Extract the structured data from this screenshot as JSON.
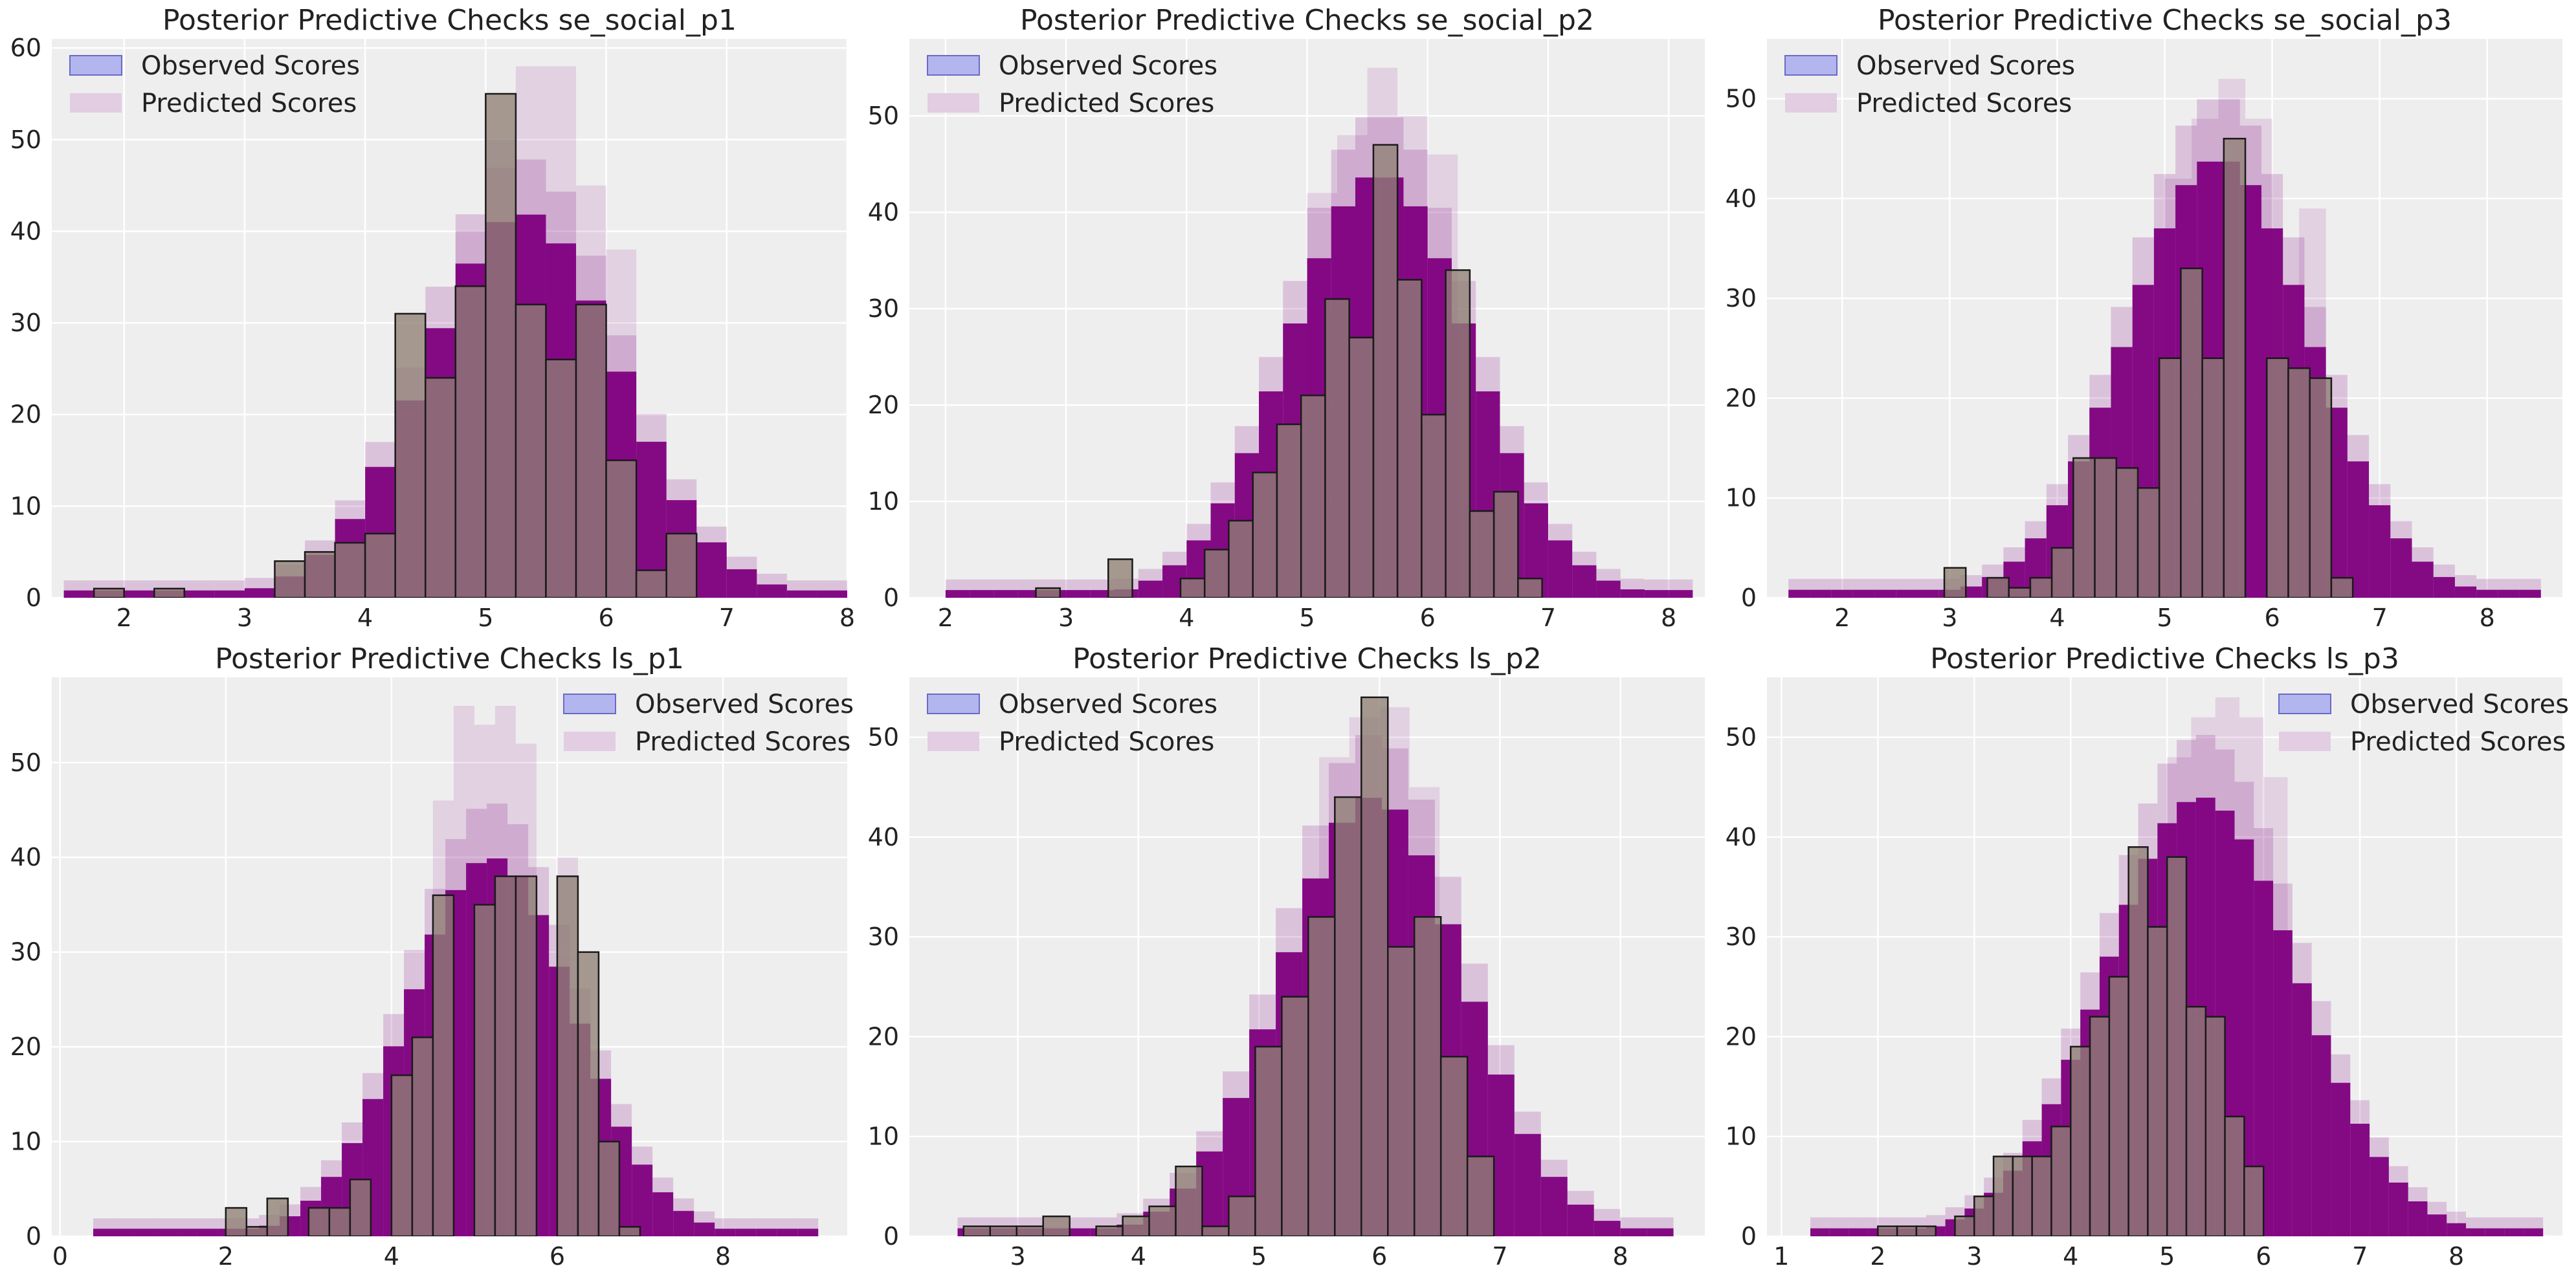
{
  "figure": {
    "colors": {
      "panel_bg": "#eeeeee",
      "grid": "#ffffff",
      "predicted": "#800080",
      "observed_fill": "#8f8074",
      "observed_edge": "#1a1a1a",
      "legend_observed": "#b3b5ee",
      "legend_predicted": "#e2cde2"
    }
  },
  "chart_data": [
    {
      "type": "bar",
      "title": "Posterior Predictive Checks se_social_p1",
      "legend": [
        "Observed Scores",
        "Predicted Scores"
      ],
      "legend_position": "top-left",
      "xlim": [
        1.4,
        8.0
      ],
      "ylim": [
        0,
        61
      ],
      "xticks": [
        2,
        3,
        4,
        5,
        6,
        7,
        8
      ],
      "yticks": [
        0,
        10,
        20,
        30,
        40,
        50,
        60
      ],
      "observed": {
        "bin_start": 1.75,
        "bin_width": 0.25,
        "counts": [
          1,
          0,
          1,
          0,
          0,
          0,
          4,
          5,
          6,
          7,
          31,
          24,
          34,
          55,
          32,
          26,
          32,
          15,
          3,
          7
        ]
      },
      "predicted": {
        "mean": 5.3,
        "sd": 0.8,
        "peak": 42,
        "x_range": [
          1.5,
          7.8
        ],
        "max_envelope": [
          [
            4.75,
            40
          ],
          [
            5.0,
            50
          ],
          [
            5.25,
            58
          ],
          [
            5.5,
            58
          ],
          [
            5.75,
            45
          ],
          [
            6.0,
            38
          ]
        ]
      }
    },
    {
      "type": "bar",
      "title": "Posterior Predictive Checks se_social_p2",
      "legend": [
        "Observed Scores",
        "Predicted Scores"
      ],
      "legend_position": "top-left",
      "xlim": [
        1.7,
        8.3
      ],
      "ylim": [
        0,
        58
      ],
      "xticks": [
        2,
        3,
        4,
        5,
        6,
        7,
        8
      ],
      "yticks": [
        0,
        10,
        20,
        30,
        40,
        50
      ],
      "observed": {
        "bin_start": 2.75,
        "bin_width": 0.2,
        "counts": [
          1,
          0,
          0,
          4,
          0,
          0,
          2,
          5,
          8,
          13,
          18,
          21,
          31,
          27,
          47,
          33,
          19,
          34,
          9,
          11,
          2
        ]
      },
      "predicted": {
        "mean": 5.6,
        "sd": 0.75,
        "peak": 44,
        "x_range": [
          2.0,
          8.1
        ],
        "max_envelope": [
          [
            5.0,
            42
          ],
          [
            5.25,
            48
          ],
          [
            5.5,
            55
          ],
          [
            5.75,
            50
          ],
          [
            6.0,
            46
          ]
        ]
      }
    },
    {
      "type": "bar",
      "title": "Posterior Predictive Checks se_social_p3",
      "legend": [
        "Observed Scores",
        "Predicted Scores"
      ],
      "legend_position": "top-left",
      "xlim": [
        1.3,
        8.7
      ],
      "ylim": [
        0,
        56
      ],
      "xticks": [
        2,
        3,
        4,
        5,
        6,
        7,
        8
      ],
      "yticks": [
        0,
        10,
        20,
        30,
        40,
        50
      ],
      "observed": {
        "bin_start": 2.95,
        "bin_width": 0.2,
        "counts": [
          3,
          0,
          2,
          1,
          2,
          5,
          14,
          14,
          13,
          11,
          24,
          33,
          24,
          46,
          0,
          24,
          23,
          22,
          2
        ],
        "gaps": [
          [
            5.75,
            5.95,
            20
          ]
        ]
      },
      "predicted": {
        "mean": 5.5,
        "sd": 0.85,
        "peak": 44,
        "x_range": [
          1.5,
          8.4
        ],
        "max_envelope": [
          [
            5.0,
            42
          ],
          [
            5.25,
            48
          ],
          [
            5.5,
            52
          ],
          [
            5.75,
            48
          ],
          [
            6.25,
            39
          ]
        ]
      }
    },
    {
      "type": "bar",
      "title": "Posterior Predictive Checks ls_p1",
      "legend": [
        "Observed Scores",
        "Predicted Scores"
      ],
      "legend_position": "top-right",
      "xlim": [
        -0.1,
        9.5
      ],
      "ylim": [
        0,
        59
      ],
      "xticks": [
        0,
        2,
        4,
        6,
        8
      ],
      "yticks": [
        0,
        10,
        20,
        30,
        40,
        50
      ],
      "observed": {
        "bin_start": 2.0,
        "bin_width": 0.25,
        "counts": [
          3,
          1,
          4,
          0,
          3,
          3,
          6,
          0,
          17,
          21,
          36,
          0,
          35,
          38,
          38,
          0,
          38,
          30,
          10,
          1
        ]
      },
      "predicted": {
        "mean": 5.2,
        "sd": 1.0,
        "peak": 40,
        "x_range": [
          0.4,
          9.1
        ],
        "max_envelope": [
          [
            4.5,
            46
          ],
          [
            4.75,
            56
          ],
          [
            5.0,
            54
          ],
          [
            5.25,
            56
          ],
          [
            5.5,
            52
          ],
          [
            6.0,
            40
          ]
        ]
      }
    },
    {
      "type": "bar",
      "title": "Posterior Predictive Checks ls_p2",
      "legend": [
        "Observed Scores",
        "Predicted Scores"
      ],
      "legend_position": "top-left",
      "xlim": [
        2.1,
        8.7
      ],
      "ylim": [
        0,
        56
      ],
      "xticks": [
        3,
        4,
        5,
        6,
        7,
        8
      ],
      "yticks": [
        0,
        10,
        20,
        30,
        40,
        50
      ],
      "observed": {
        "bin_start": 2.55,
        "bin_width": 0.22,
        "counts": [
          1,
          1,
          1,
          2,
          0,
          1,
          2,
          3,
          7,
          1,
          4,
          19,
          24,
          32,
          44,
          54,
          29,
          32,
          18,
          8
        ]
      },
      "predicted": {
        "mean": 5.95,
        "sd": 0.75,
        "peak": 44,
        "x_range": [
          2.5,
          8.4
        ],
        "max_envelope": [
          [
            5.5,
            48
          ],
          [
            5.75,
            52
          ],
          [
            6.0,
            53
          ],
          [
            6.25,
            45
          ]
        ]
      }
    },
    {
      "type": "bar",
      "title": "Posterior Predictive Checks ls_p3",
      "legend": [
        "Observed Scores",
        "Predicted Scores"
      ],
      "legend_position": "top-right",
      "xlim": [
        0.85,
        9.1
      ],
      "ylim": [
        0,
        56
      ],
      "xticks": [
        1,
        2,
        3,
        4,
        5,
        6,
        7,
        8
      ],
      "yticks": [
        0,
        10,
        20,
        30,
        40,
        50
      ],
      "observed": {
        "bin_start": 2.0,
        "bin_width": 0.2,
        "counts": [
          1,
          1,
          1,
          0,
          2,
          4,
          8,
          8,
          8,
          11,
          19,
          22,
          26,
          39,
          31,
          38,
          23,
          22,
          12,
          7
        ]
      },
      "predicted": {
        "mean": 5.35,
        "sd": 1.0,
        "peak": 44,
        "x_range": [
          1.3,
          8.8
        ],
        "max_envelope": [
          [
            5.0,
            48
          ],
          [
            5.25,
            52
          ],
          [
            5.5,
            54
          ],
          [
            5.75,
            52
          ],
          [
            6.0,
            46
          ]
        ]
      }
    }
  ]
}
